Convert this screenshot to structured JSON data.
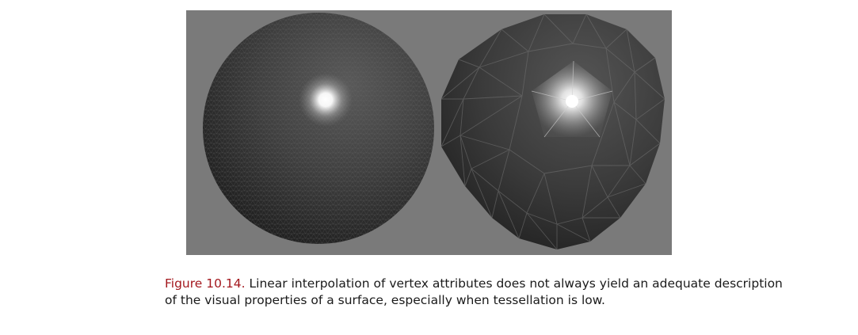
{
  "figure": {
    "label": "Figure 10.14.",
    "caption": "Linear interpolation of vertex attributes does not always yield an adequate description of the visual properties of a surface, especially when tessellation is low.",
    "colors": {
      "background": "#7a7a7a",
      "caption_label": "#a3171d",
      "caption_text": "#1a1a1a"
    },
    "panels": [
      {
        "name": "high-tessellation-sphere",
        "highlight": "smooth round specular highlight"
      },
      {
        "name": "low-tessellation-sphere",
        "highlight": "pentagon-shaped specular highlight"
      }
    ]
  }
}
